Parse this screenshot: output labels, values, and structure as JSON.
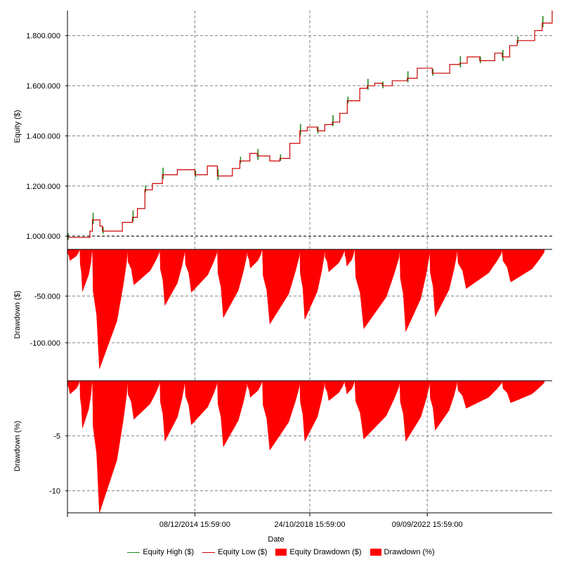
{
  "chart_data": [
    {
      "type": "line",
      "ylabel": "Equity ($)",
      "ylim": [
        950000,
        1900000
      ],
      "yticks": [
        {
          "v": 1000000,
          "label": "1.000.000"
        },
        {
          "v": 1200000,
          "label": "1.200.000"
        },
        {
          "v": 1400000,
          "label": "1.400.000"
        },
        {
          "v": 1600000,
          "label": "1.600.000"
        },
        {
          "v": 1800000,
          "label": "1.800.000"
        }
      ],
      "grid": true,
      "series": [
        {
          "name": "Equity High ($)",
          "color": "#228b22"
        },
        {
          "name": "Equity Low ($)",
          "color": "#cc0000"
        }
      ],
      "x": [
        "2010-09",
        "2011-06",
        "2011-07",
        "2011-10",
        "2011-11",
        "2012-07",
        "2012-11",
        "2013-01",
        "2013-04",
        "2013-07",
        "2013-11",
        "2014-05",
        "2014-12",
        "2015-05",
        "2015-09",
        "2016-03",
        "2016-06",
        "2016-10",
        "2017-01",
        "2017-06",
        "2017-10",
        "2018-02",
        "2018-06",
        "2018-09",
        "2019-01",
        "2019-04",
        "2019-07",
        "2019-10",
        "2020-01",
        "2020-06",
        "2020-09",
        "2020-12",
        "2021-03",
        "2021-07",
        "2022-01",
        "2022-05",
        "2022-11",
        "2023-06",
        "2023-10",
        "2024-01",
        "2024-06",
        "2024-12",
        "2025-03",
        "2025-06",
        "2025-09",
        "2026-04",
        "2026-07",
        "2026-11"
      ],
      "y": [
        995000,
        1020000,
        1065000,
        1040000,
        1020000,
        1055000,
        1075000,
        1110000,
        1185000,
        1210000,
        1245000,
        1265000,
        1245000,
        1280000,
        1240000,
        1270000,
        1300000,
        1330000,
        1320000,
        1300000,
        1310000,
        1370000,
        1420000,
        1435000,
        1420000,
        1445000,
        1455000,
        1490000,
        1540000,
        1590000,
        1600000,
        1610000,
        1600000,
        1620000,
        1630000,
        1670000,
        1650000,
        1685000,
        1690000,
        1715000,
        1700000,
        1730000,
        1715000,
        1760000,
        1780000,
        1820000,
        1850000,
        1900000
      ]
    },
    {
      "type": "area",
      "ylabel": "Drawdown ($)",
      "ylim": [
        -140000,
        0
      ],
      "yticks": [
        {
          "v": -50000,
          "label": "-50.000"
        },
        {
          "v": -100000,
          "label": "-100.000"
        }
      ],
      "grid": true,
      "series": [
        {
          "name": "Equity Drawdown ($)",
          "color": "#ff0000"
        }
      ]
    },
    {
      "type": "area",
      "ylabel": "Drawdown (%)",
      "ylim": [
        -12,
        0
      ],
      "yticks": [
        {
          "v": -5,
          "label": "-5"
        },
        {
          "v": -10,
          "label": "-10"
        }
      ],
      "grid": true,
      "series": [
        {
          "name": "Drawdown (%)",
          "color": "#ff0000"
        }
      ]
    }
  ],
  "drawdown_events": [
    {
      "start": "2010-09",
      "end": "2011-02",
      "pct": -1.2,
      "usd": -12000
    },
    {
      "start": "2011-02",
      "end": "2011-07",
      "pct": -4.3,
      "usd": -45000
    },
    {
      "start": "2011-07",
      "end": "2012-09",
      "pct": -12.0,
      "usd": -128000
    },
    {
      "start": "2012-09",
      "end": "2013-10",
      "pct": -3.5,
      "usd": -38000
    },
    {
      "start": "2013-10",
      "end": "2014-08",
      "pct": -5.5,
      "usd": -60000
    },
    {
      "start": "2014-08",
      "end": "2015-09",
      "pct": -4.0,
      "usd": -46000
    },
    {
      "start": "2015-09",
      "end": "2016-09",
      "pct": -6.0,
      "usd": -73000
    },
    {
      "start": "2016-09",
      "end": "2017-03",
      "pct": -1.5,
      "usd": -20000
    },
    {
      "start": "2017-03",
      "end": "2018-06",
      "pct": -6.3,
      "usd": -80000
    },
    {
      "start": "2018-06",
      "end": "2019-04",
      "pct": -5.5,
      "usd": -75000
    },
    {
      "start": "2019-04",
      "end": "2019-12",
      "pct": -1.8,
      "usd": -24000
    },
    {
      "start": "2019-12",
      "end": "2020-04",
      "pct": -1.2,
      "usd": -18000
    },
    {
      "start": "2020-04",
      "end": "2021-10",
      "pct": -5.3,
      "usd": -85000
    },
    {
      "start": "2021-10",
      "end": "2022-10",
      "pct": -5.5,
      "usd": -88000
    },
    {
      "start": "2022-10",
      "end": "2023-09",
      "pct": -4.5,
      "usd": -72000
    },
    {
      "start": "2023-09",
      "end": "2025-03",
      "pct": -2.5,
      "usd": -42000
    },
    {
      "start": "2025-03",
      "end": "2026-08",
      "pct": -2.0,
      "usd": -35000
    }
  ],
  "x_axis": {
    "title": "Date",
    "range": [
      "2010-09",
      "2026-11"
    ],
    "ticks": [
      {
        "date": "2014-12",
        "label": "08/12/2014 15:59:00"
      },
      {
        "date": "2018-10",
        "label": "24/10/2018 15:59:00"
      },
      {
        "date": "2022-09",
        "label": "09/09/2022 15:59:00"
      }
    ]
  },
  "legend": {
    "items": [
      {
        "label": "Equity High ($)",
        "kind": "line",
        "color": "#228b22"
      },
      {
        "label": "Equity Low ($)",
        "kind": "line",
        "color": "#cc0000"
      },
      {
        "label": "Equity Drawdown ($)",
        "kind": "box",
        "color": "#ff0000"
      },
      {
        "label": "Drawdown (%)",
        "kind": "box",
        "color": "#ff0000"
      }
    ]
  }
}
